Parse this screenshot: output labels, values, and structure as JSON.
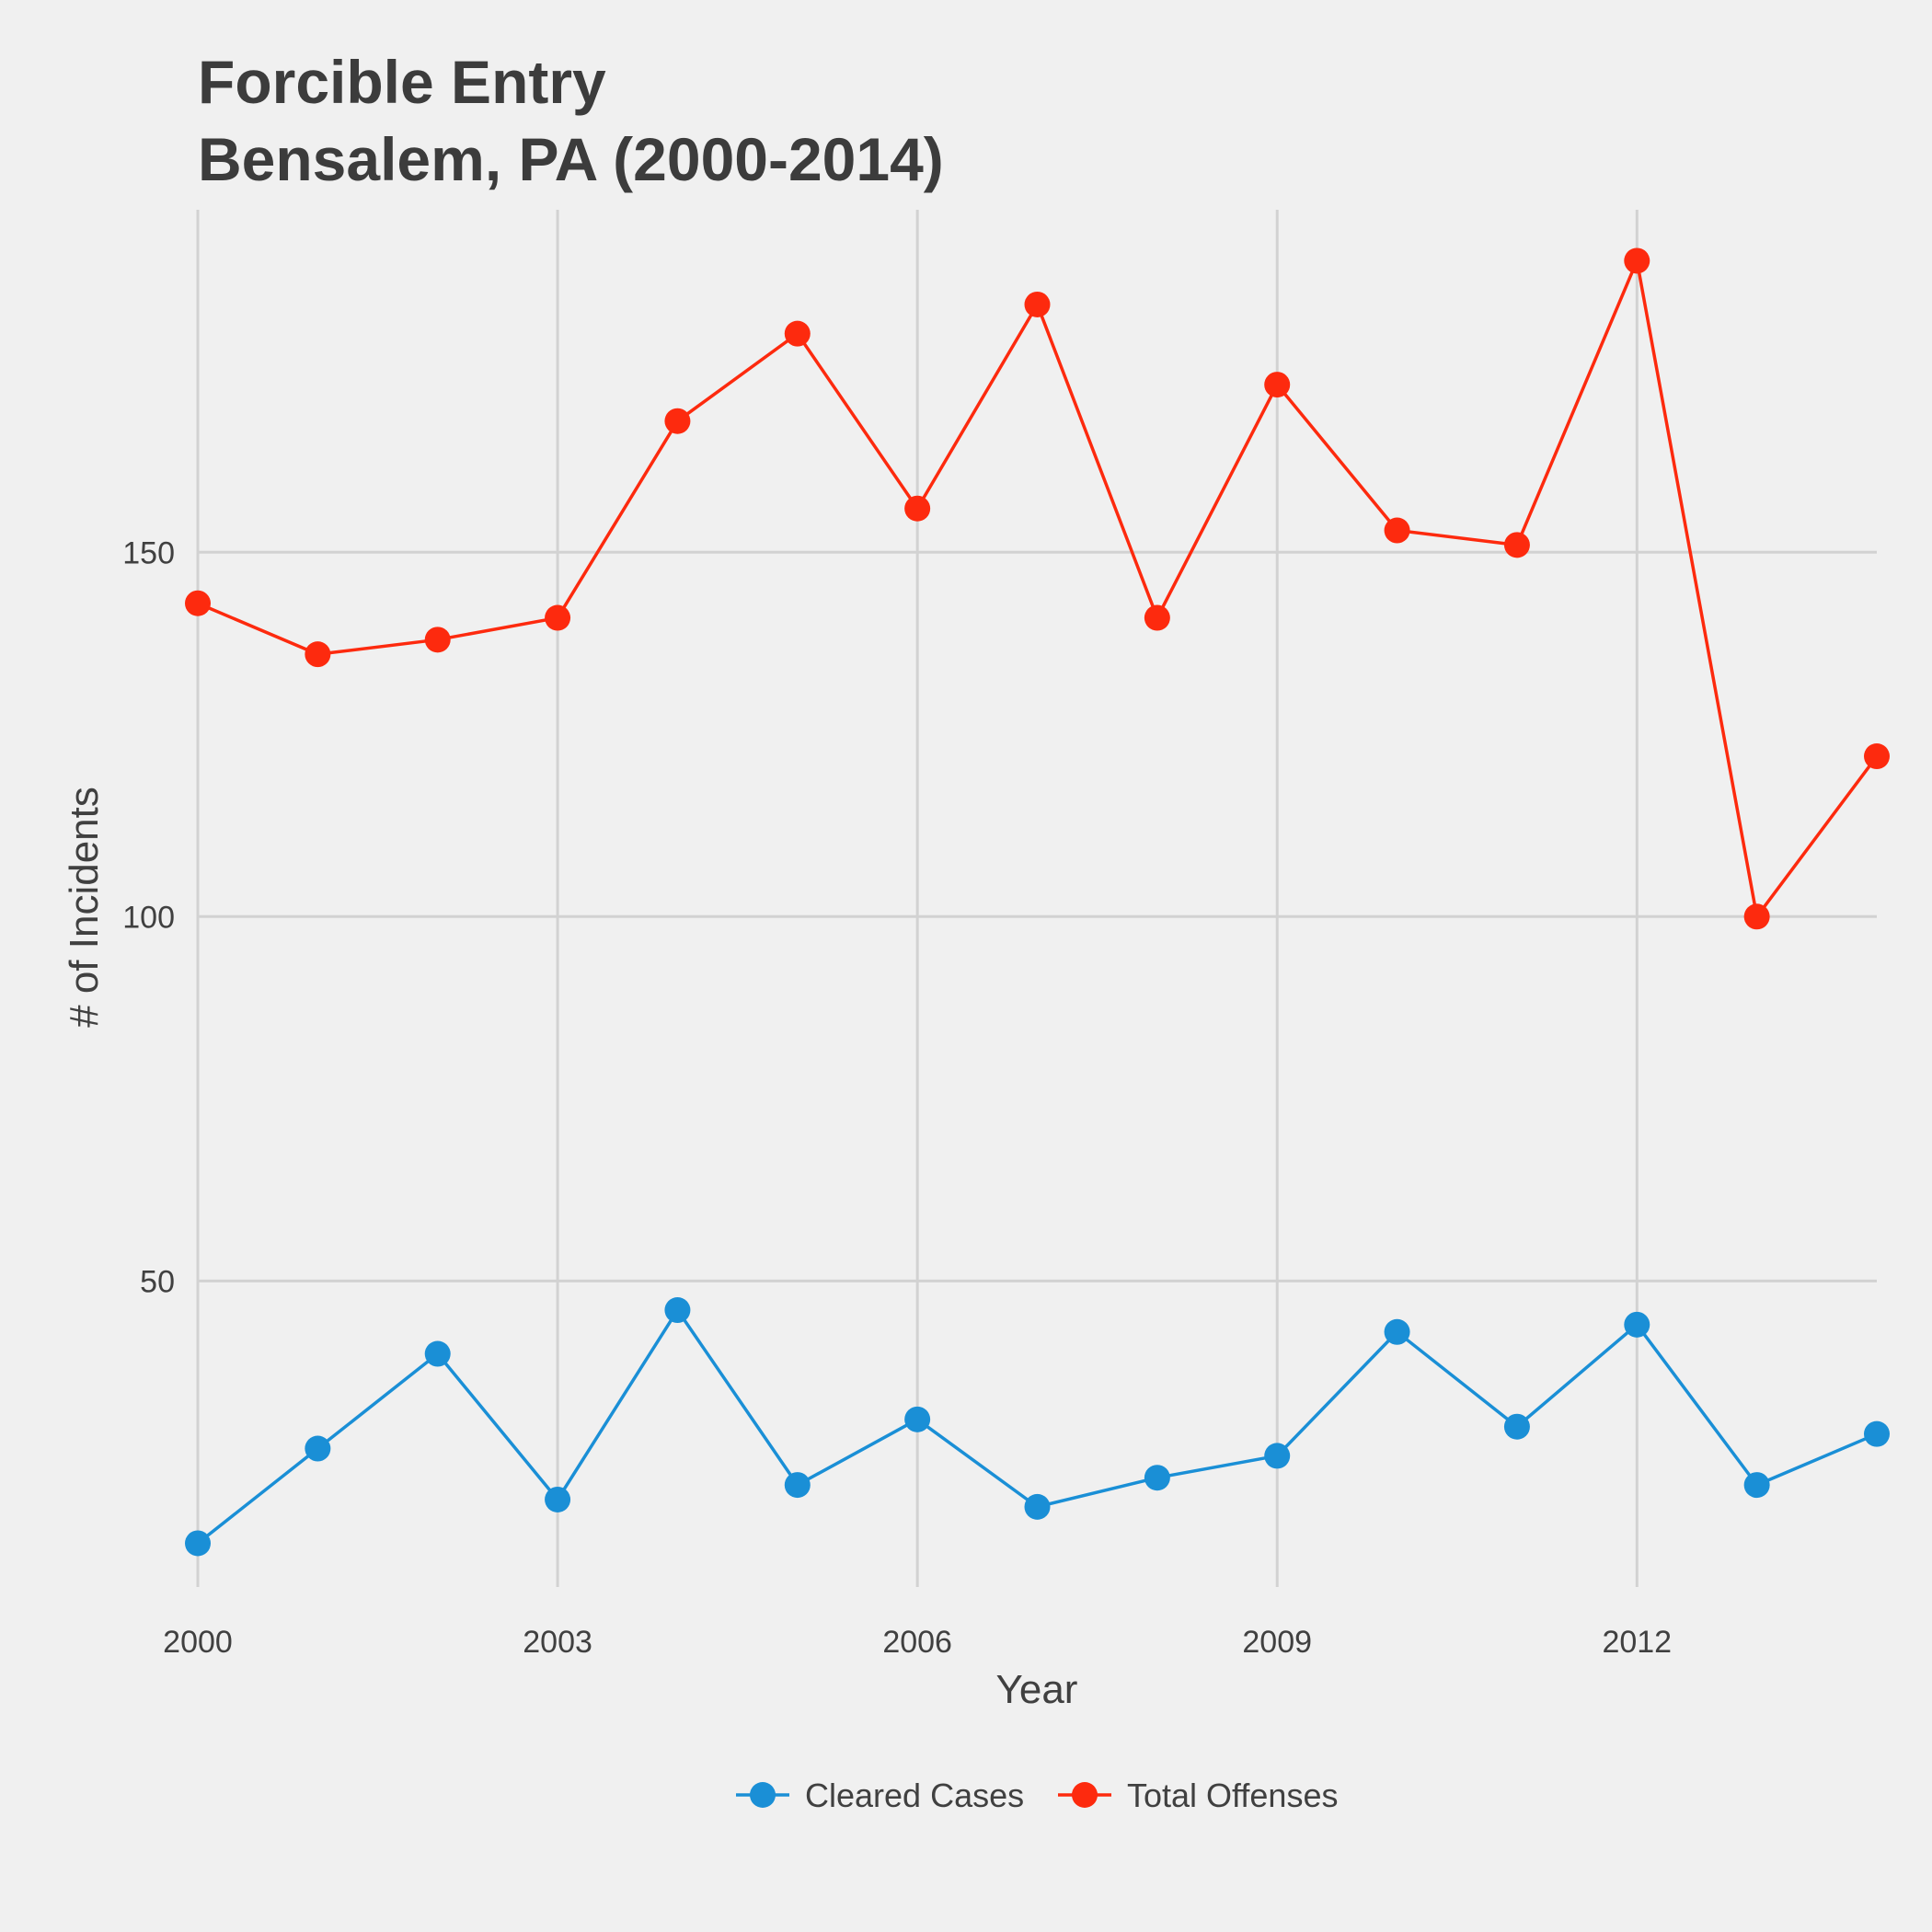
{
  "chart_data": {
    "type": "line",
    "title": "Forcible Entry",
    "subtitle": "Bensalem, PA (2000-2014)",
    "xlabel": "Year",
    "ylabel": "# of Incidents",
    "x": [
      2000,
      2001,
      2002,
      2003,
      2004,
      2005,
      2006,
      2007,
      2008,
      2009,
      2010,
      2011,
      2012,
      2013,
      2014
    ],
    "xlim": [
      2000,
      2014
    ],
    "ylim": [
      8,
      197
    ],
    "x_ticks": [
      2000,
      2003,
      2006,
      2009,
      2012
    ],
    "y_ticks": [
      50,
      100,
      150
    ],
    "grid": true,
    "legend_position": "bottom",
    "series": [
      {
        "name": "Cleared Cases",
        "color": "#1a8fd6",
        "values": [
          14,
          27,
          40,
          20,
          46,
          22,
          31,
          19,
          23,
          26,
          43,
          30,
          44,
          22,
          29
        ]
      },
      {
        "name": "Total Offenses",
        "color": "#fd2a0e",
        "values": [
          143,
          136,
          138,
          141,
          168,
          180,
          156,
          184,
          141,
          173,
          153,
          151,
          190,
          100,
          122
        ]
      }
    ]
  }
}
